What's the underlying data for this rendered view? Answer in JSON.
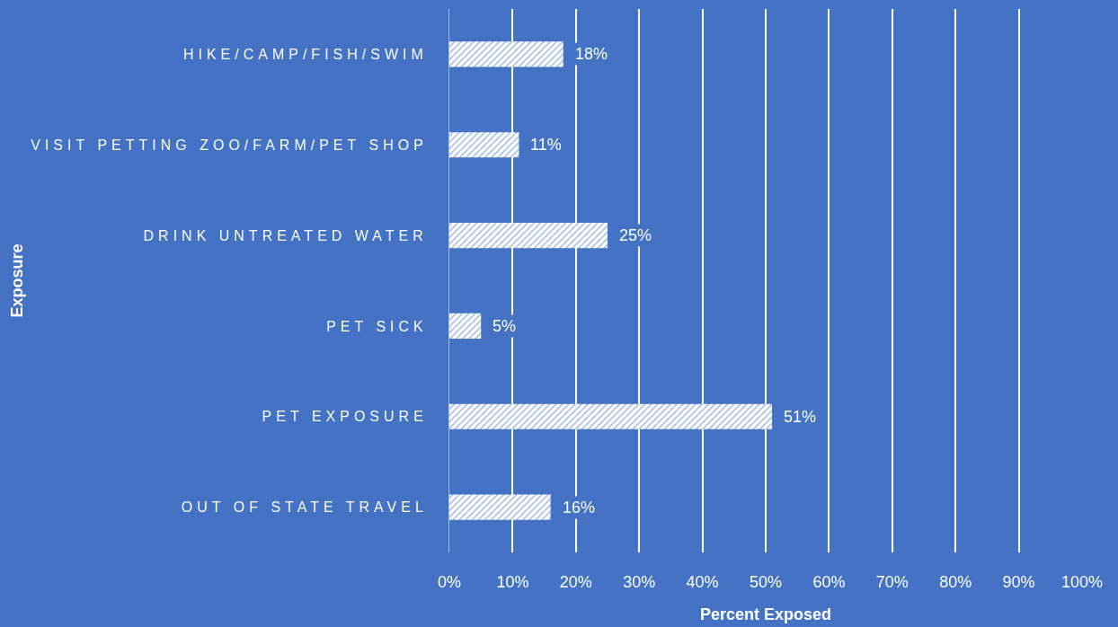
{
  "chart_data": {
    "type": "bar",
    "orientation": "horizontal",
    "categories": [
      "HIKE/CAMP/FISH/SWIM",
      "VISIT PETTING ZOO/FARM/PET SHOP",
      "DRINK UNTREATED WATER",
      "PET SICK",
      "PET EXPOSURE",
      "OUT OF STATE TRAVEL"
    ],
    "values": [
      18,
      11,
      25,
      5,
      51,
      16
    ],
    "value_labels": [
      "18%",
      "11%",
      "25%",
      "5%",
      "51%",
      "16%"
    ],
    "color": "#ffffff",
    "xlabel": "Percent Exposed",
    "ylabel": "Exposure",
    "xlim": [
      0,
      100
    ],
    "xticks": [
      {
        "value": 0,
        "label": "0%"
      },
      {
        "value": 10,
        "label": "10%"
      },
      {
        "value": 20,
        "label": "20%"
      },
      {
        "value": 30,
        "label": "30%"
      },
      {
        "value": 40,
        "label": "40%"
      },
      {
        "value": 50,
        "label": "50%"
      },
      {
        "value": 60,
        "label": "60%"
      },
      {
        "value": 70,
        "label": "70%"
      },
      {
        "value": 80,
        "label": "80%"
      },
      {
        "value": 90,
        "label": "90%"
      },
      {
        "value": 100,
        "label": "100%"
      }
    ],
    "grid": "x"
  }
}
